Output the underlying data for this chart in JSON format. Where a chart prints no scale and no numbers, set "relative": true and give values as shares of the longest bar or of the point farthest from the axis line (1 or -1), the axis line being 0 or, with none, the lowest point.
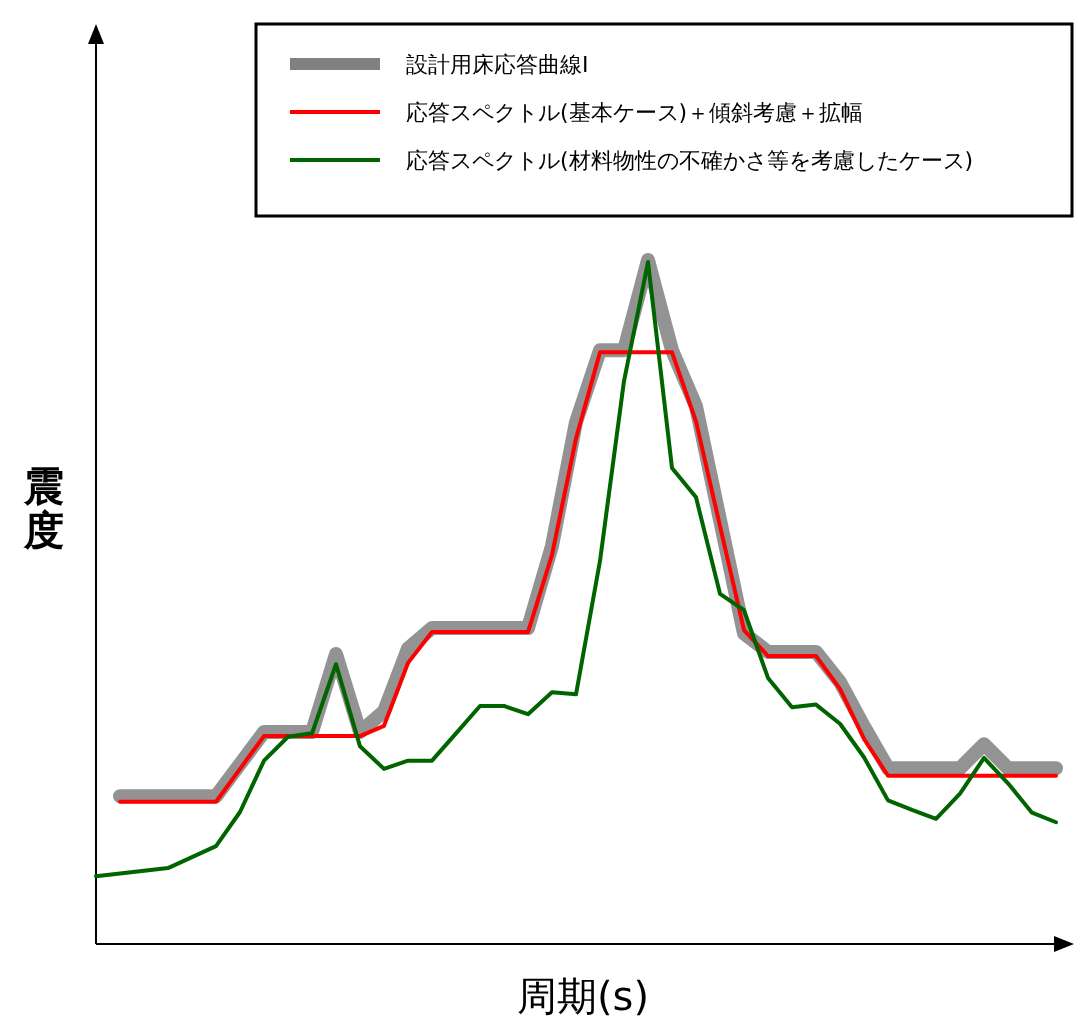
{
  "chart_data": {
    "type": "line",
    "relative": true,
    "tick_labels": false,
    "xlabel": "周期(s)",
    "ylabel": "震度",
    "legend": "top right",
    "grid": false,
    "marker": "none",
    "line_style": "solid",
    "categories": [
      null,
      null,
      null,
      null,
      null,
      null,
      null,
      null,
      null,
      null,
      null,
      null,
      null,
      null,
      null,
      null,
      null,
      null,
      null,
      null,
      null,
      null,
      null,
      null,
      null,
      null,
      null,
      null,
      null,
      null,
      null,
      null,
      null,
      null,
      null,
      null,
      null,
      null,
      null,
      null,
      null
    ],
    "series": [
      {
        "name": "設計用床応答曲線Ⅰ",
        "color": "#808080",
        "values": [
          null,
          0.216,
          0.216,
          0.216,
          0.216,
          0.216,
          0.263,
          0.31,
          0.31,
          0.31,
          0.424,
          0.31,
          0.34,
          0.432,
          0.462,
          0.462,
          0.462,
          0.462,
          0.462,
          0.582,
          0.763,
          0.868,
          0.868,
          1,
          0.868,
          0.786,
          0.62,
          0.454,
          0.427,
          0.427,
          0.427,
          0.383,
          0.318,
          0.257,
          0.257,
          0.257,
          0.257,
          0.292,
          0.257,
          0.257,
          0.257
        ]
      },
      {
        "name": "応答スペクトル(基本ケース)＋傾斜考慮＋拡幅",
        "color": "#ff0000",
        "values": [
          null,
          0.208,
          0.208,
          0.208,
          0.208,
          0.208,
          0.256,
          0.304,
          0.304,
          0.304,
          0.304,
          0.304,
          0.319,
          0.411,
          0.456,
          0.456,
          0.456,
          0.456,
          0.456,
          0.569,
          0.739,
          0.865,
          0.865,
          0.865,
          0.865,
          0.764,
          0.611,
          0.459,
          0.421,
          0.421,
          0.421,
          0.373,
          0.3,
          0.246,
          0.246,
          0.246,
          0.246,
          0.246,
          0.246,
          0.246,
          0.246
        ]
      },
      {
        "name": "応答スペクトル(材料物性の不確かさ等を考慮したケース)",
        "color": "#006400",
        "values": [
          0.099,
          0.103,
          0.107,
          0.111,
          0.127,
          0.143,
          0.193,
          0.268,
          0.303,
          0.308,
          0.409,
          0.289,
          0.256,
          0.268,
          0.268,
          0.308,
          0.348,
          0.348,
          0.336,
          0.368,
          0.365,
          0.56,
          0.823,
          0.997,
          0.696,
          0.653,
          0.512,
          0.488,
          0.389,
          0.346,
          0.35,
          0.322,
          0.273,
          0.21,
          0.196,
          0.183,
          0.22,
          0.272,
          0.235,
          0.192,
          0.178
        ]
      }
    ]
  }
}
